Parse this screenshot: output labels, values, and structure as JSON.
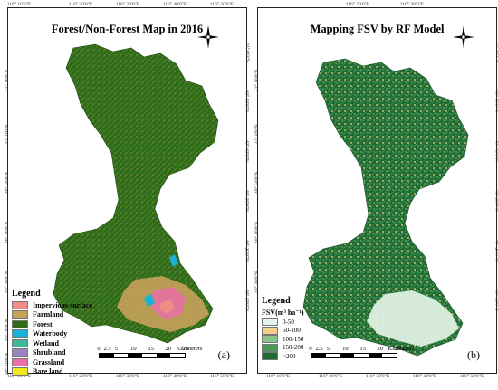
{
  "panel_a": {
    "title": "Forest/Non-Forest Map in 2016",
    "label": "(a)",
    "legend_title": "Legend",
    "legend": [
      {
        "name": "Impervious surface",
        "color": "#ee8c86"
      },
      {
        "name": "Farmland",
        "color": "#c8a25a"
      },
      {
        "name": "Forest",
        "color": "#2f6b1a"
      },
      {
        "name": "Waterbody",
        "color": "#1ab2d8"
      },
      {
        "name": "Wetland",
        "color": "#3fb89a"
      },
      {
        "name": "Shrubland",
        "color": "#9b84c2"
      },
      {
        "name": "Grassland",
        "color": "#e86fa8"
      },
      {
        "name": "Bare land",
        "color": "#f2ea1c"
      }
    ]
  },
  "panel_b": {
    "title": "Mapping FSV by RF Model",
    "label": "(b)",
    "legend_title": "Legend",
    "legend_subtitle": "FSV(m³ ha⁻¹)",
    "legend": [
      {
        "name": "0-50",
        "color": "#e4f4e6"
      },
      {
        "name": "50-100",
        "color": "#f4d08a"
      },
      {
        "name": "100-150",
        "color": "#8cc48e"
      },
      {
        "name": "150-200",
        "color": "#4a9a55"
      },
      {
        "name": ">200",
        "color": "#1f6b34"
      }
    ]
  },
  "ticks": {
    "top_a": [
      "116° 10'0\"E",
      "116° 20'0\"E",
      "116° 30'0\"E",
      "116° 40'0\"E",
      "116° 50'0\"E"
    ],
    "bottom_a": [
      "116° 10'0\"E",
      "116° 20'0\"E",
      "116° 30'0\"E",
      "116° 40'0\"E",
      "116° 50'0\"E"
    ],
    "top_b": [
      "116° 20'0\"E",
      "116° 30'0\"E"
    ],
    "bottom_b": [
      "116° 10'0\"E",
      "116° 20'0\"E",
      "116° 30'0\"E",
      "116° 40'0\"E",
      "116° 50'0\"E"
    ],
    "left": [
      "41° 10'0\"N",
      "41° 0'0\"N",
      "40° 50'0\"N",
      "40° 40'0\"N",
      "40° 30'0\"N",
      "40° 20'0\"N",
      "40° 10'0\"N"
    ],
    "right": [
      "41° 0'0\"N",
      "40° 50'0\"N",
      "40° 40'0\"N",
      "40° 30'0\"N",
      "40° 20'0\"N",
      "40° 10'0\"N"
    ]
  },
  "scalebar": {
    "labels": [
      "0",
      "2.5",
      "5",
      "10",
      "15",
      "20",
      "25"
    ],
    "unit": "Kilometers"
  },
  "north_arrow": {
    "letters": [
      "N",
      "S",
      "E",
      "W"
    ]
  }
}
